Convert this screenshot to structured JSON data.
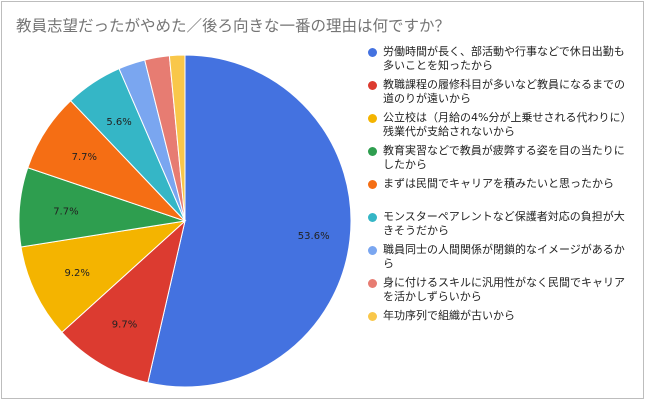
{
  "chart_data": {
    "type": "pie",
    "title": "教員志望だったがやめた／後ろ向きな一番の理由は何ですか？",
    "legend_position": "right",
    "slices": [
      {
        "label": "労働時間が長く、部活動や行事などで休日出勤も多いことを知ったから",
        "value": 53.6,
        "display": "53.6%",
        "color": "#4472e0"
      },
      {
        "label": "教職課程の履修科目が多いなど教員になるまでの道のりが遠いから",
        "value": 9.7,
        "display": "9.7%",
        "color": "#dc3b30"
      },
      {
        "label": "公立校は（月給の4%分が上乗せされる代わりに）残業代が支給されないから",
        "value": 9.2,
        "display": "9.2%",
        "color": "#f4b400"
      },
      {
        "label": "教育実習などで教員が疲弊する姿を目の当たりにしたから",
        "value": 7.7,
        "display": "7.7%",
        "color": "#2e9e4f"
      },
      {
        "label": "まずは民間でキャリアを積みたいと思ったから",
        "value": 7.7,
        "display": "7.7%",
        "color": "#f56e14"
      },
      {
        "label": "モンスターペアレントなど保護者対応の負担が大きそうだから",
        "value": 5.6,
        "display": "5.6%",
        "color": "#35b6c6"
      },
      {
        "label": "職員同士の人間関係が閉鎖的なイメージがあるから",
        "value": 2.6,
        "display": "",
        "color": "#7aa6f0"
      },
      {
        "label": "身に付けるスキルに汎用性がなく民間でキャリアを活かしずらいから",
        "value": 2.4,
        "display": "",
        "color": "#e77c72"
      },
      {
        "label": "年功序列で組織が古いから",
        "value": 1.5,
        "display": "",
        "color": "#f9c74a"
      }
    ]
  }
}
